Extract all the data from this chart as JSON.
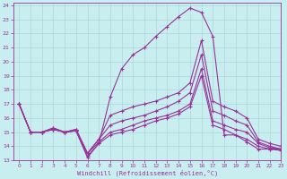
{
  "xlabel": "Windchill (Refroidissement éolien,°C)",
  "xlim": [
    -0.5,
    23
  ],
  "ylim": [
    13,
    24.2
  ],
  "yticks": [
    13,
    14,
    15,
    16,
    17,
    18,
    19,
    20,
    21,
    22,
    23,
    24
  ],
  "xticks": [
    0,
    1,
    2,
    3,
    4,
    5,
    6,
    7,
    8,
    9,
    10,
    11,
    12,
    13,
    14,
    15,
    16,
    17,
    18,
    19,
    20,
    21,
    22,
    23
  ],
  "background_color": "#c8eef0",
  "line_color": "#993399",
  "grid_color": "#aadddd",
  "lines": [
    [
      17.0,
      15.0,
      15.0,
      15.2,
      15.0,
      15.1,
      13.2,
      14.2,
      17.5,
      19.5,
      20.5,
      21.0,
      21.8,
      22.5,
      23.2,
      23.8,
      23.5,
      21.8,
      14.8,
      14.8,
      14.3,
      13.8,
      13.8,
      13.8
    ],
    [
      17.0,
      15.0,
      15.0,
      15.3,
      15.0,
      15.2,
      13.5,
      14.5,
      16.2,
      16.5,
      16.8,
      17.0,
      17.2,
      17.5,
      17.8,
      18.5,
      21.5,
      17.2,
      16.8,
      16.5,
      16.0,
      14.5,
      14.2,
      14.0
    ],
    [
      17.0,
      15.0,
      15.0,
      15.3,
      15.0,
      15.2,
      13.5,
      14.5,
      15.5,
      15.8,
      16.0,
      16.2,
      16.5,
      16.8,
      17.2,
      17.8,
      20.5,
      16.5,
      16.2,
      15.8,
      15.5,
      14.3,
      14.0,
      13.8
    ],
    [
      17.0,
      15.0,
      15.0,
      15.2,
      15.0,
      15.1,
      13.5,
      14.3,
      15.0,
      15.2,
      15.5,
      15.8,
      16.0,
      16.2,
      16.5,
      17.0,
      19.5,
      15.8,
      15.5,
      15.2,
      15.0,
      14.2,
      13.9,
      13.8
    ],
    [
      17.0,
      15.0,
      15.0,
      15.2,
      15.0,
      15.1,
      13.3,
      14.2,
      14.8,
      15.0,
      15.2,
      15.5,
      15.8,
      16.0,
      16.3,
      16.8,
      19.0,
      15.5,
      15.2,
      14.8,
      14.5,
      14.0,
      13.8,
      13.7
    ]
  ]
}
